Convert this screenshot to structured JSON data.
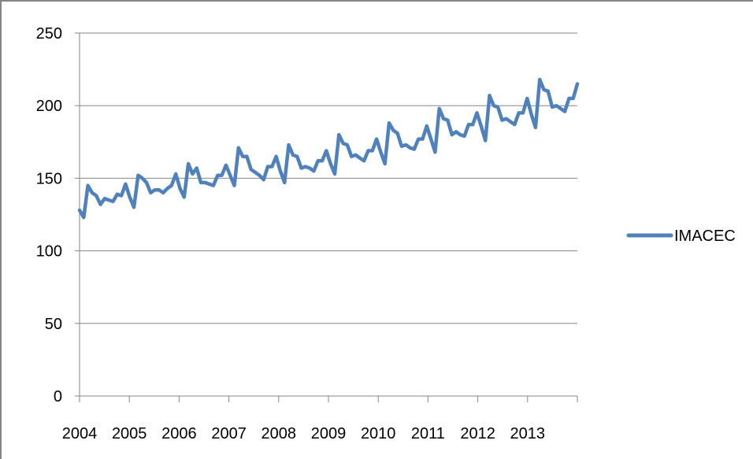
{
  "chart_data": {
    "type": "line",
    "title": "",
    "xlabel": "",
    "ylabel": "",
    "ylim": [
      0,
      250
    ],
    "yticks": [
      0,
      50,
      100,
      150,
      200,
      250
    ],
    "xticks": [
      "2004",
      "2005",
      "2006",
      "2007",
      "2008",
      "2009",
      "2010",
      "2011",
      "2012",
      "2013"
    ],
    "grid": true,
    "legend_position": "right",
    "series": [
      {
        "name": "IMACEC",
        "color": "#4F81BD",
        "start": "2004-01",
        "frequency": "monthly",
        "values": [
          128,
          123,
          145,
          140,
          138,
          132,
          136,
          135,
          134,
          139,
          138,
          146,
          137,
          130,
          152,
          150,
          147,
          140,
          142,
          142,
          140,
          143,
          145,
          153,
          143,
          137,
          160,
          153,
          157,
          147,
          147,
          146,
          145,
          152,
          152,
          159,
          152,
          145,
          171,
          165,
          165,
          156,
          154,
          152,
          149,
          158,
          158,
          165,
          155,
          147,
          173,
          166,
          165,
          157,
          158,
          157,
          155,
          162,
          162,
          169,
          160,
          153,
          180,
          174,
          173,
          165,
          166,
          164,
          162,
          169,
          169,
          177,
          168,
          160,
          188,
          183,
          181,
          172,
          173,
          171,
          170,
          177,
          177,
          186,
          177,
          168,
          198,
          191,
          190,
          180,
          182,
          180,
          179,
          187,
          187,
          195,
          186,
          176,
          207,
          200,
          199,
          190,
          191,
          189,
          187,
          195,
          195,
          205,
          194,
          185,
          218,
          211,
          210,
          199,
          200,
          198,
          196,
          205,
          205,
          215
        ]
      }
    ]
  }
}
